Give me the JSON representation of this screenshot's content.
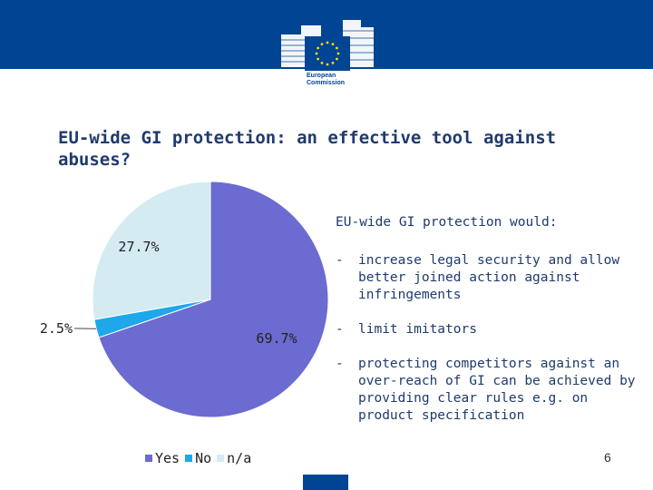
{
  "header": {
    "logo_lines": [
      "European",
      "Commission"
    ],
    "colors": {
      "band": "#004494",
      "stars": "#ffdd00"
    }
  },
  "title": "EU-wide GI protection: an effective tool against abuses?",
  "side_panel": {
    "heading": "EU-wide GI protection would:",
    "bullet_marker": "-",
    "bullets": [
      "increase legal security and allow better joined action against infringements",
      "limit imitators",
      "protecting competitors against an over-reach of GI can be achieved by providing clear rules e.g. on product specification"
    ]
  },
  "chart_data": {
    "type": "pie",
    "categories": [
      "Yes",
      "No",
      "n/a"
    ],
    "values": [
      69.7,
      2.5,
      27.7
    ],
    "data_labels": [
      "69.7%",
      "2.5%",
      "27.7%"
    ],
    "colors": [
      "#6b6bd1",
      "#1ea7ea",
      "#d5ebf2"
    ],
    "start_angle": "12 o'clock, clockwise",
    "legend_position": "bottom"
  },
  "page_number": "6"
}
